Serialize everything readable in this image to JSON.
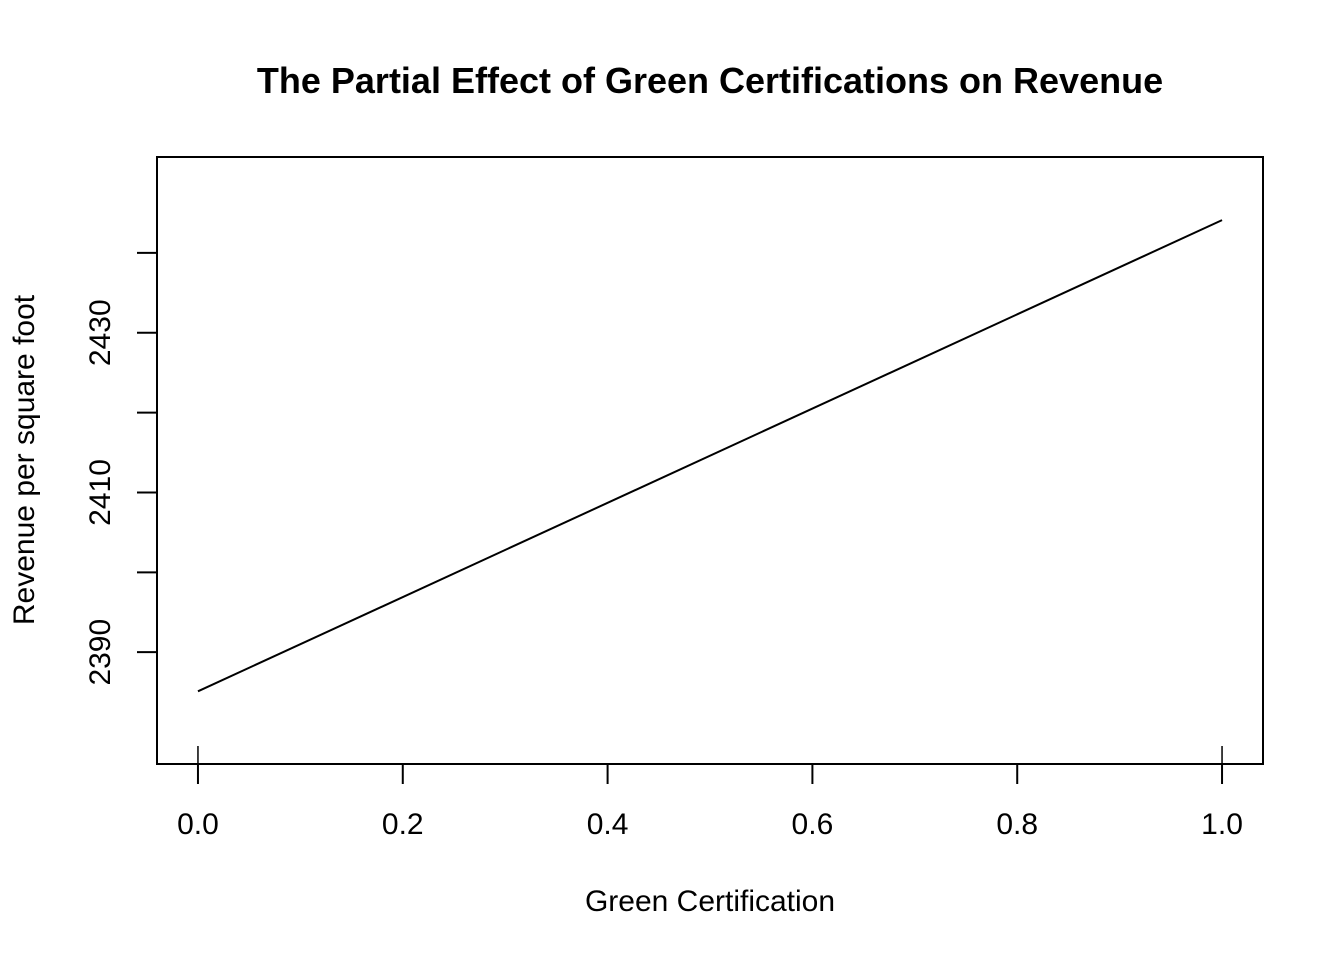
{
  "chart_data": {
    "type": "line",
    "title": "The Partial Effect of Green Certifications on Revenue",
    "xlabel": "Green Certification",
    "ylabel": "Revenue per square foot",
    "xlim": [
      -0.04,
      1.04
    ],
    "ylim": [
      2376,
      2452
    ],
    "x_ticks": [
      0.0,
      0.2,
      0.4,
      0.6,
      0.8,
      1.0
    ],
    "x_tick_labels": [
      "0.0",
      "0.2",
      "0.4",
      "0.6",
      "0.8",
      "1.0"
    ],
    "y_ticks": [
      2390,
      2400,
      2410,
      2420,
      2430,
      2440
    ],
    "y_tick_labels": [
      "2390",
      "",
      "2410",
      "",
      "2430",
      ""
    ],
    "rug_x": [
      0.0,
      1.0
    ],
    "grid": false,
    "legend": "none",
    "series": [
      {
        "x": [
          0.0,
          1.0
        ],
        "y": [
          2385.1,
          2444.1
        ]
      }
    ]
  }
}
